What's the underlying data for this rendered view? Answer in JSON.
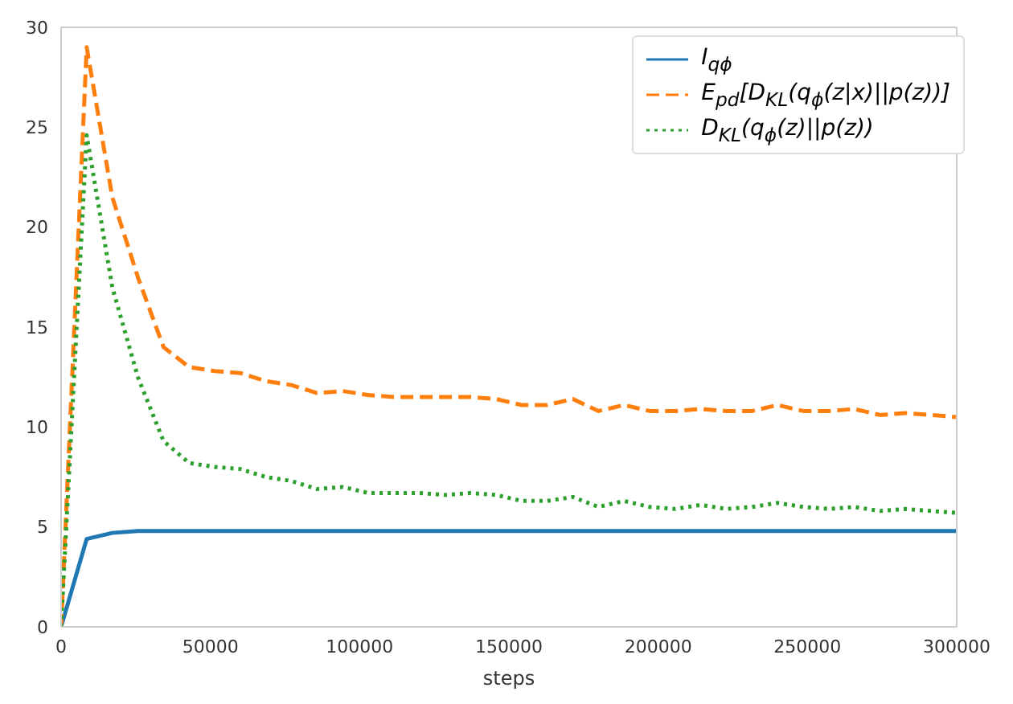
{
  "chart_data": {
    "type": "line",
    "xlabel": "steps",
    "x": [
      0,
      8571,
      17143,
      25714,
      34286,
      42857,
      51429,
      60000,
      68571,
      77143,
      85714,
      94286,
      102857,
      111429,
      120000,
      128571,
      137143,
      145714,
      154286,
      162857,
      171429,
      180000,
      188571,
      197143,
      205714,
      214286,
      222857,
      231429,
      240000,
      248571,
      257143,
      265714,
      274286,
      282857,
      291429,
      300000
    ],
    "series": [
      {
        "name": "I$_{qϕ}$",
        "color": "#1f77b4",
        "line_style": "solid",
        "values": [
          0,
          4.4,
          4.7,
          4.8,
          4.8,
          4.8,
          4.8,
          4.8,
          4.8,
          4.8,
          4.8,
          4.8,
          4.8,
          4.8,
          4.8,
          4.8,
          4.8,
          4.8,
          4.8,
          4.8,
          4.8,
          4.8,
          4.8,
          4.8,
          4.8,
          4.8,
          4.8,
          4.8,
          4.8,
          4.8,
          4.8,
          4.8,
          4.8,
          4.8,
          4.8,
          4.8
        ]
      },
      {
        "name": "E$_{pd}$[D$_{KL}$(q$_{ϕ}$(z|x)||p(z))]",
        "color": "#ff7f0e",
        "line_style": "dashed",
        "values": [
          0,
          29,
          21.5,
          17.5,
          14,
          13,
          12.8,
          12.7,
          12.3,
          12.1,
          11.7,
          11.8,
          11.6,
          11.5,
          11.5,
          11.5,
          11.5,
          11.4,
          11.1,
          11.1,
          11.4,
          10.8,
          11.1,
          10.8,
          10.8,
          10.9,
          10.8,
          10.8,
          11.1,
          10.8,
          10.8,
          10.9,
          10.6,
          10.7,
          10.6,
          10.5
        ]
      },
      {
        "name": "D$_{KL}$(q$_{ϕ}$(z)||p(z))",
        "color": "#2ca02c",
        "line_style": "dotted",
        "values": [
          0,
          24.6,
          17,
          12.5,
          9.3,
          8.2,
          8.0,
          7.9,
          7.5,
          7.3,
          6.9,
          7.0,
          6.7,
          6.7,
          6.7,
          6.6,
          6.7,
          6.6,
          6.3,
          6.3,
          6.5,
          6.0,
          6.3,
          6.0,
          5.9,
          6.1,
          5.9,
          6.0,
          6.2,
          6.0,
          5.9,
          6.0,
          5.8,
          5.9,
          5.8,
          5.7
        ]
      }
    ],
    "xlim": [
      0,
      300000
    ],
    "xticks": [
      0,
      50000,
      100000,
      150000,
      200000,
      250000,
      300000
    ],
    "ylim": [
      0,
      30
    ],
    "yticks": [
      0,
      5,
      10,
      15,
      20,
      25,
      30
    ],
    "grid": false,
    "legend": "top right",
    "marker": "none"
  }
}
